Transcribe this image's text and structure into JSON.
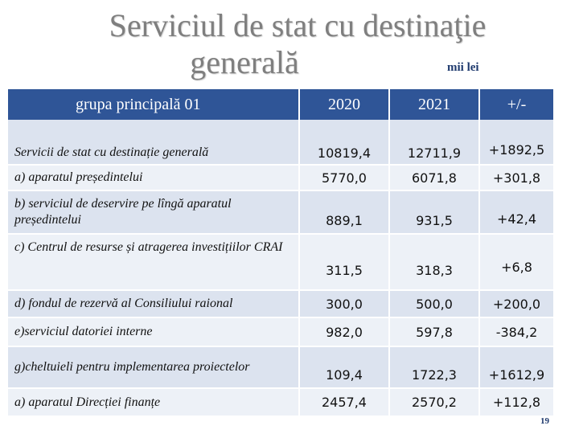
{
  "title": {
    "line1": "Serviciul de stat cu destinaţie",
    "line2": "generală",
    "unit": "mii lei"
  },
  "table": {
    "headers": [
      "grupa principală 01",
      "2020",
      "2021",
      "+/-"
    ],
    "rows": [
      {
        "label": "Servicii de stat cu destinație generală",
        "v2020": "10819,4",
        "v2021": "12711,9",
        "diff": "+1892,5"
      },
      {
        "label": "a) aparatul președintelui",
        "v2020": "5770,0",
        "v2021": "6071,8",
        "diff": "+301,8"
      },
      {
        "label": "b) serviciul de deservire pe lîngă aparatul președintelui",
        "v2020": "889,1",
        "v2021": "931,5",
        "diff": "+42,4"
      },
      {
        "label": "c) Centrul de resurse și atragerea investițiilor   CRAI",
        "v2020": "311,5",
        "v2021": "318,3",
        "diff": "+6,8"
      },
      {
        "label": "d) fondul de rezervă al Consiliului raional",
        "v2020": "300,0",
        "v2021": "500,0",
        "diff": "+200,0"
      },
      {
        "label": "e)serviciul datoriei interne",
        "v2020": "982,0",
        "v2021": "597,8",
        "diff": "-384,2"
      },
      {
        "label": "g)cheltuieli pentru implementarea proiectelor",
        "v2020": "109,4",
        "v2021": "1722,3",
        "diff": "+1612,9"
      },
      {
        "label": "a) aparatul Direcției  finanțe",
        "v2020": "2457,4",
        "v2021": "2570,2",
        "diff": "+112,8"
      }
    ]
  },
  "page_number": "19"
}
